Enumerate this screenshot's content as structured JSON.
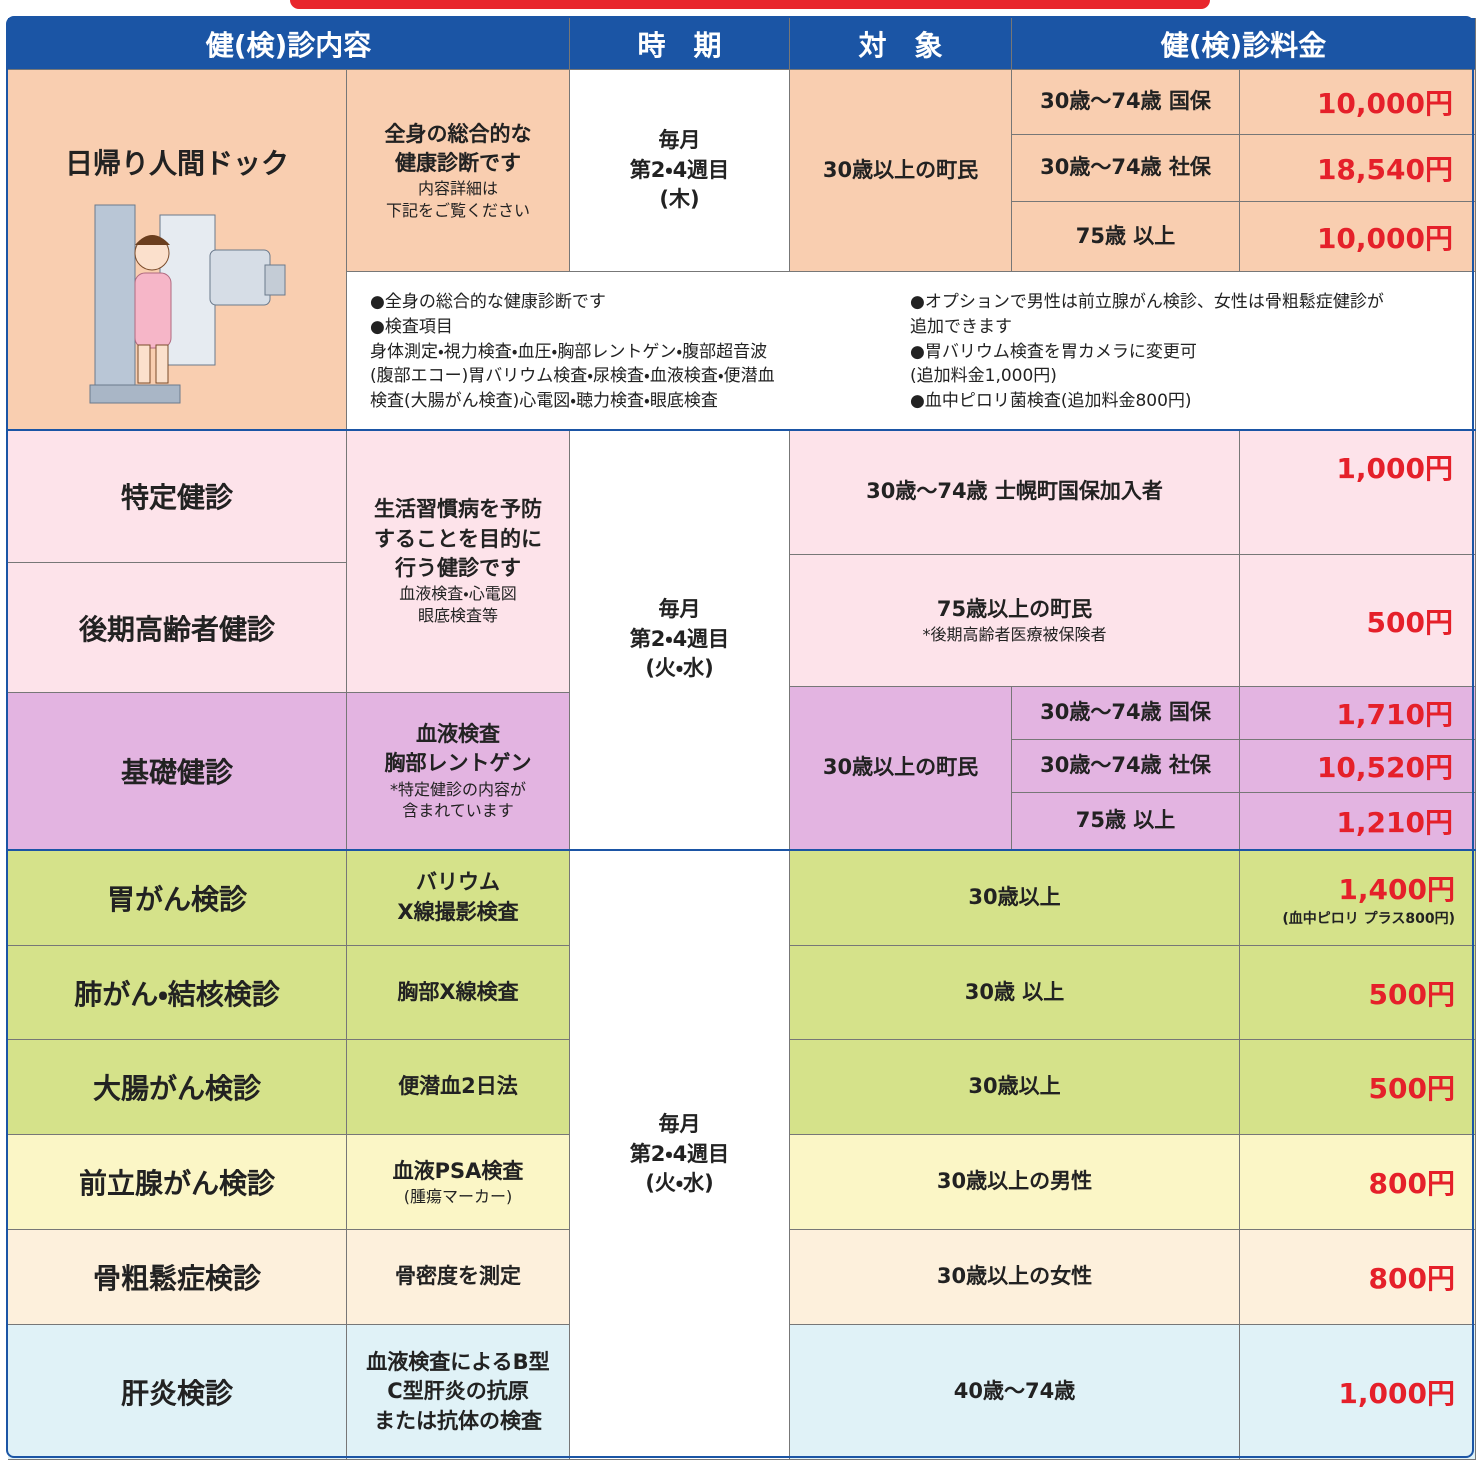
{
  "header": [
    "健(検)診内容",
    "時　期",
    "対　象",
    "健(検)診料金"
  ],
  "dock": {
    "name": "日帰り人間ドック",
    "content": [
      "全身の総合的な",
      "健康診断です"
    ],
    "content_note": [
      "内容詳細は",
      "下記をご覧ください"
    ],
    "period": [
      "毎月",
      "第2・4週目",
      "(木)"
    ],
    "target": "30歳以上の町民",
    "fees": [
      [
        "30歳～74歳 国保",
        "10,000円"
      ],
      [
        "30歳～74歳 社保",
        "18,540円"
      ],
      [
        "75歳 以上",
        "10,000円"
      ]
    ],
    "notes_left": [
      "●全身の総合的な健康診断です",
      "●検査項目",
      "身体測定・視力検査・血圧・胸部レントゲン・腹部超音波",
      "(腹部エコー)胃バリウム検査・尿検査・血液検査・便潜血",
      "検査(大腸がん検査)心電図・聴力検査・眼底検査"
    ],
    "notes_right": [
      "●オプションで男性は前立腺がん検診、女性は骨粗鬆症健診が",
      "追加できます",
      "●胃バリウム検査を胃カメラに変更可",
      "(追加料金1,000円)",
      "●血中ピロリ菌検査(追加料金800円)"
    ]
  },
  "checkup": {
    "names": [
      "特定健診",
      "後期高齢者健診"
    ],
    "content": [
      "生活習慣病を予防",
      "することを目的に",
      "行う健診です"
    ],
    "content_note": [
      "血液検査・心電図",
      "眼底検査等"
    ],
    "period": [
      "毎月",
      "第2・4週目",
      "(火・水)"
    ],
    "rows": [
      {
        "target": "30歳～74歳 士幌町国保加入者",
        "price": "1,000円"
      },
      {
        "target": "75歳以上の町民",
        "note": "*後期高齢者医療被保険者",
        "price": "500円"
      }
    ],
    "basic": {
      "name": "基礎健診",
      "content": [
        "血液検査",
        "胸部レントゲン"
      ],
      "content_note": [
        "*特定健診の内容が",
        "含まれています"
      ],
      "target": "30歳以上の町民",
      "fees": [
        [
          "30歳～74歳 国保",
          "1,710円"
        ],
        [
          "30歳～74歳 社保",
          "10,520円"
        ],
        [
          "75歳 以上",
          "1,210円"
        ]
      ]
    }
  },
  "cancer": {
    "period": [
      "毎月",
      "第2・4週目",
      "(火・水)"
    ],
    "rows": [
      {
        "name": "胃がん検診",
        "content": [
          "バリウム",
          "X線撮影検査"
        ],
        "target": "30歳以上",
        "price": "1,400円",
        "price_note": "(血中ピロリ プラス800円)"
      },
      {
        "name": "肺がん・結核検診",
        "content": [
          "胸部X線検査"
        ],
        "target": "30歳 以上",
        "price": "500円"
      },
      {
        "name": "大腸がん検診",
        "content": [
          "便潜血2日法"
        ],
        "target": "30歳以上",
        "price": "500円"
      },
      {
        "name": "前立腺がん検診",
        "content": [
          "血液PSA検査"
        ],
        "content_note": [
          "(腫瘍マーカー)"
        ],
        "target": "30歳以上の男性",
        "price": "800円"
      },
      {
        "name": "骨粗鬆症検診",
        "content": [
          "骨密度を測定"
        ],
        "target": "30歳以上の女性",
        "price": "800円"
      },
      {
        "name": "肝炎検診",
        "content": [
          "血液検査によるB型",
          "C型肝炎の抗原",
          "または抗体の検査"
        ],
        "target": "40歳～74歳",
        "price": "1,000円"
      }
    ]
  }
}
